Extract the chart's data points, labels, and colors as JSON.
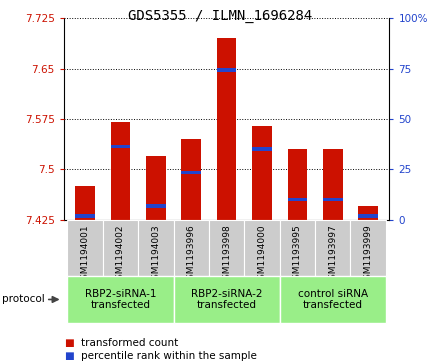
{
  "title": "GDS5355 / ILMN_1696284",
  "samples": [
    "GSM1194001",
    "GSM1194002",
    "GSM1194003",
    "GSM1193996",
    "GSM1193998",
    "GSM1194000",
    "GSM1193995",
    "GSM1193997",
    "GSM1193999"
  ],
  "bar_tops": [
    7.475,
    7.57,
    7.52,
    7.545,
    7.695,
    7.565,
    7.53,
    7.53,
    7.445
  ],
  "bar_bottom": 7.425,
  "percentile_values": [
    7.4305,
    7.534,
    7.445,
    7.495,
    7.648,
    7.53,
    7.455,
    7.455,
    7.4305
  ],
  "ylim_left": [
    7.425,
    7.725
  ],
  "ylim_right": [
    0,
    100
  ],
  "yticks_left": [
    7.425,
    7.5,
    7.575,
    7.65,
    7.725
  ],
  "yticks_right": [
    0,
    25,
    50,
    75,
    100
  ],
  "ytick_labels_left": [
    "7.425",
    "7.5",
    "7.575",
    "7.65",
    "7.725"
  ],
  "ytick_labels_right": [
    "0",
    "25",
    "50",
    "75",
    "100%"
  ],
  "bar_color": "#cc1100",
  "percentile_color": "#2244cc",
  "groups": [
    {
      "label": "RBP2-siRNA-1\ntransfected",
      "start": 0,
      "end": 3
    },
    {
      "label": "RBP2-siRNA-2\ntransfected",
      "start": 3,
      "end": 6
    },
    {
      "label": "control siRNA\ntransfected",
      "start": 6,
      "end": 9
    }
  ],
  "group_color": "#99ee88",
  "sample_box_color": "#cccccc",
  "plot_bg": "#ffffff",
  "bar_width": 0.55,
  "title_fontsize": 10,
  "tick_fontsize": 7.5,
  "sample_fontsize": 6.5,
  "group_fontsize": 7.5,
  "legend_fontsize": 7.5
}
